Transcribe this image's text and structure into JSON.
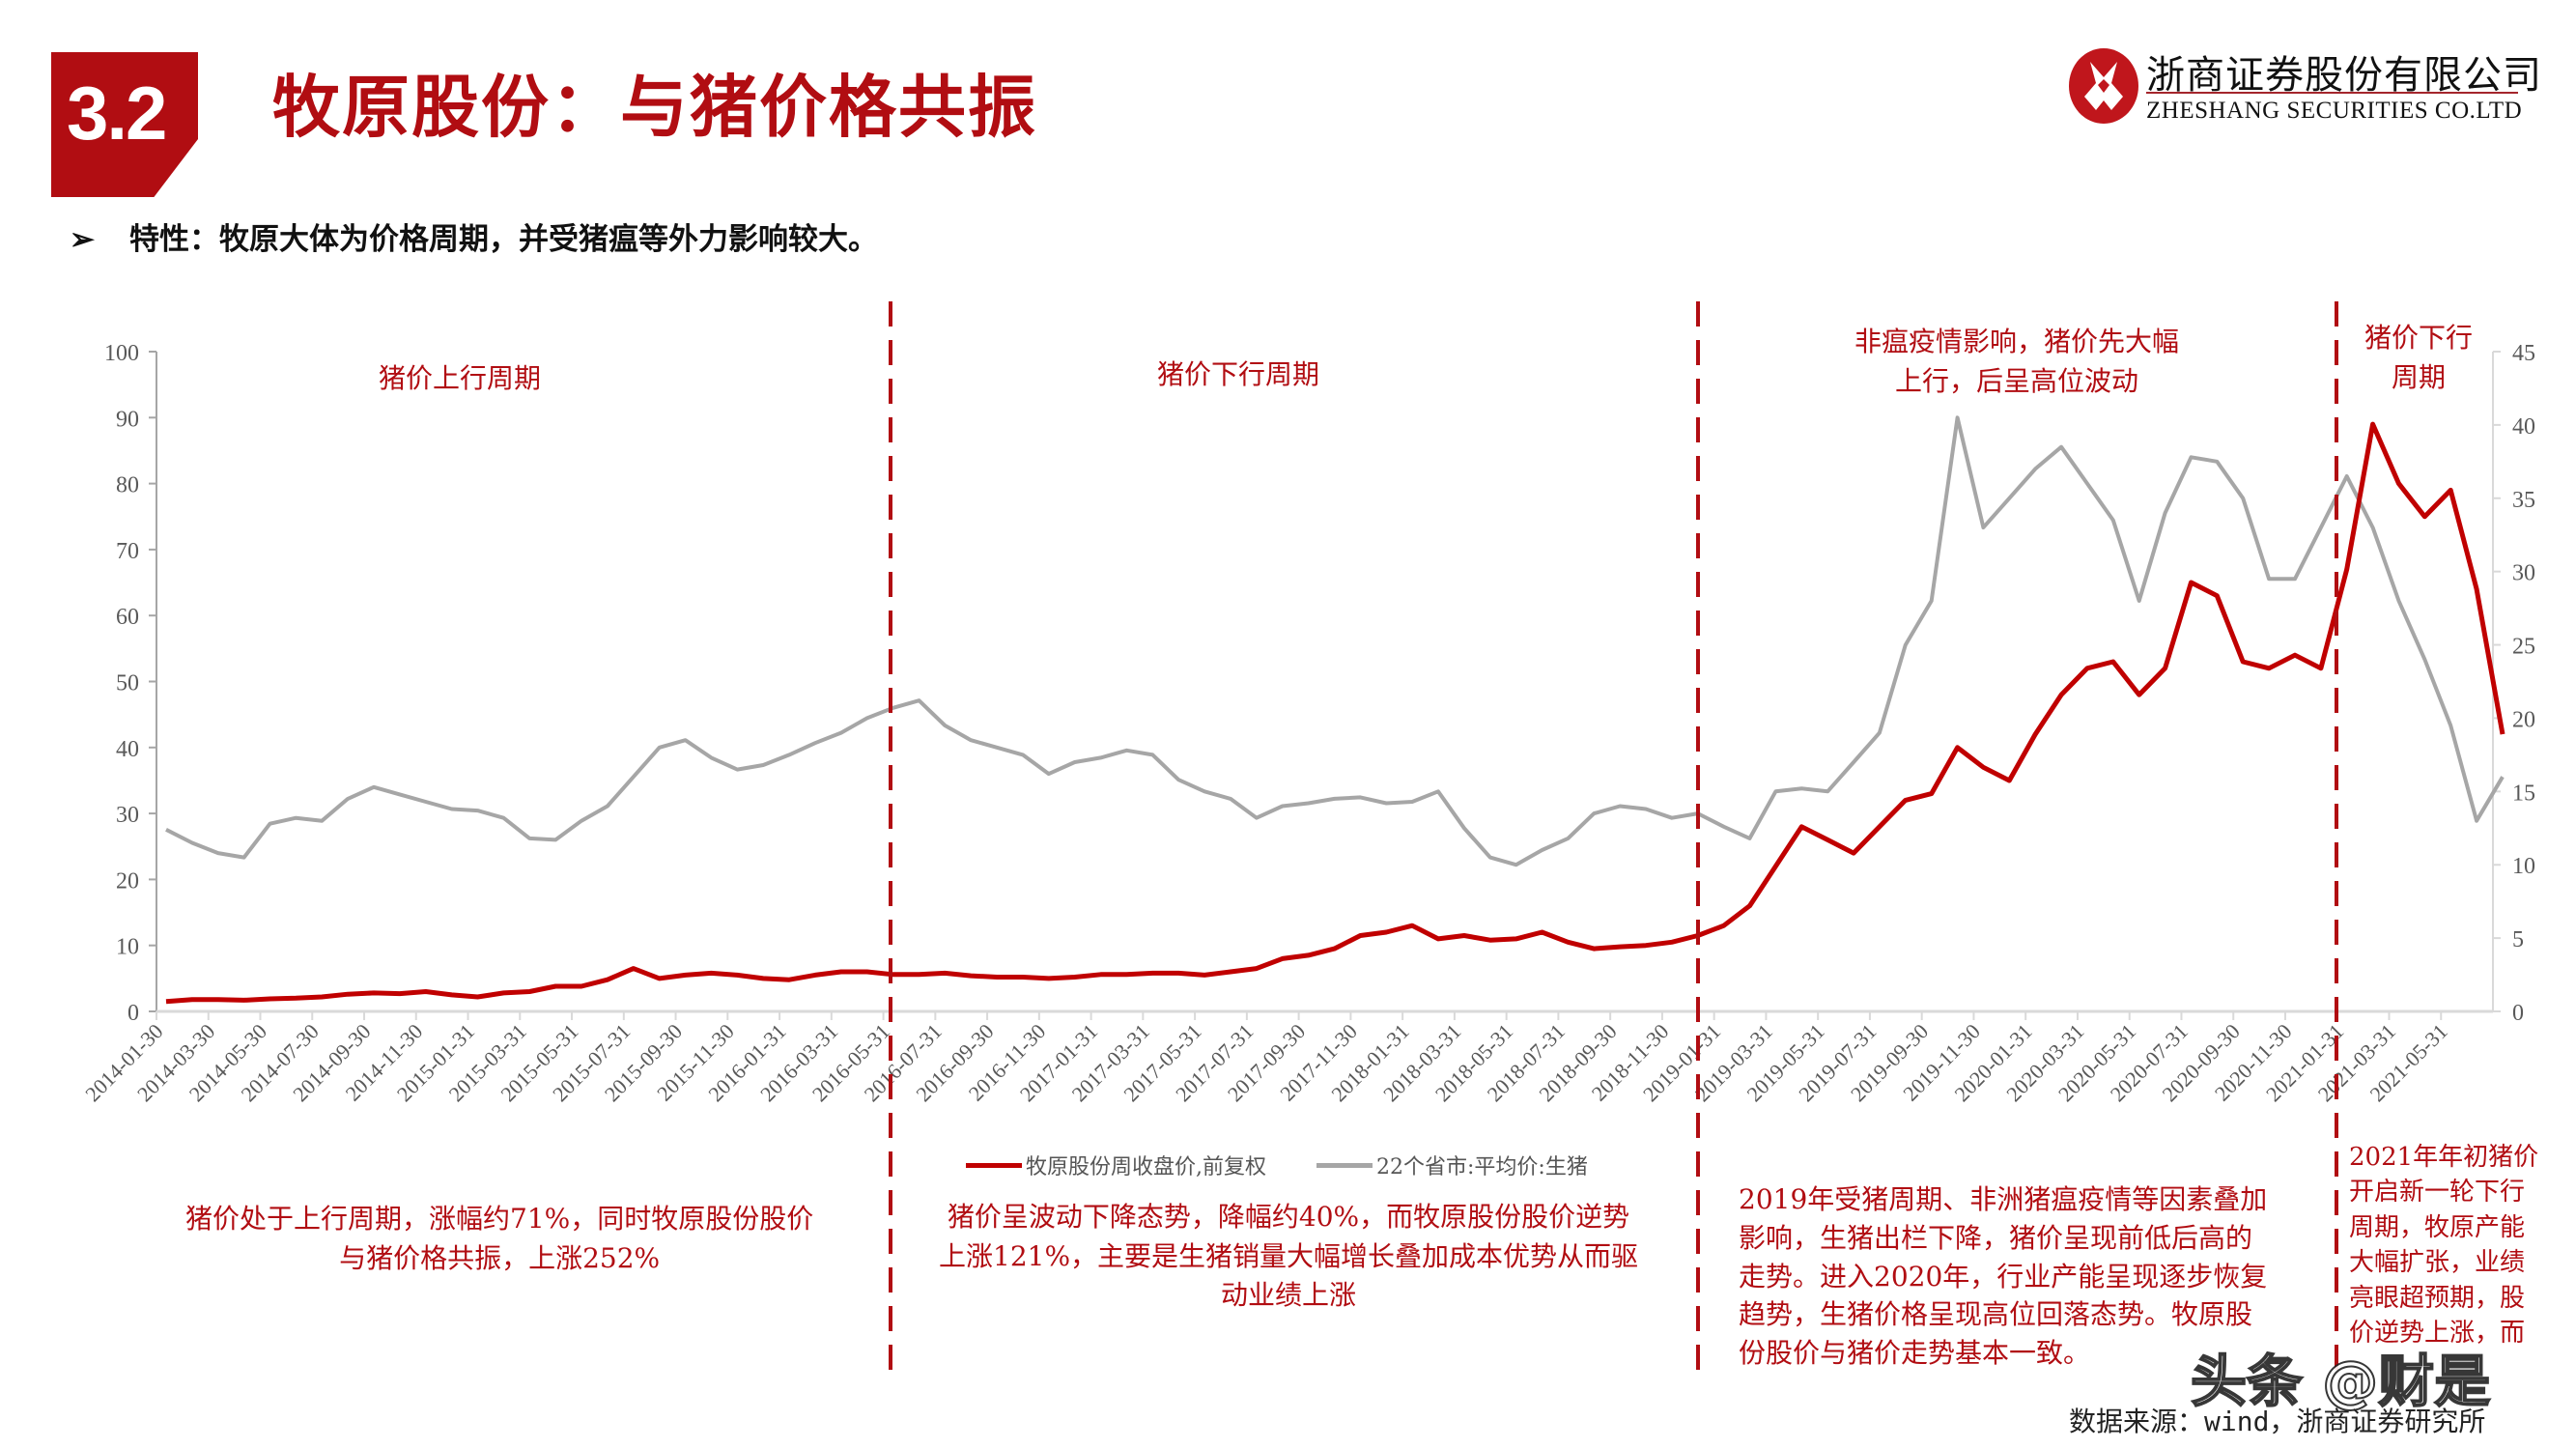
{
  "header": {
    "section_number": "3.2",
    "title": "牧原股份：与猪价格共振",
    "logo_cn": "浙商证券股份有限公司",
    "logo_en": "ZHESHANG SECURITIES CO.LTD",
    "bullet": "特性：牧原大体为价格周期，并受猪瘟等外力影响较大。"
  },
  "colors": {
    "brand_red": "#b10d12",
    "stock_line": "#c00000",
    "pig_line": "#a6a6a6",
    "divider": "#b10d12"
  },
  "annotations": {
    "top": [
      {
        "text": "猪价上行周期"
      },
      {
        "text": "猪价下行周期"
      },
      {
        "text": "非瘟疫情影响，猪价先大幅\n上行，后呈高位波动"
      },
      {
        "text": "猪价下行\n周期"
      }
    ],
    "bottom": [
      {
        "text": "猪价处于上行周期，涨幅约71%，同时牧原股份股价\n与猪价格共振，上涨252%"
      },
      {
        "text": "猪价呈波动下降态势，降幅约40%，而牧原股份股价逆势\n上涨121%，主要是生猪销量大幅增长叠加成本优势从而驱\n动业绩上涨"
      },
      {
        "text": "2019年受猪周期、非洲猪瘟疫情等因素叠加\n影响，生猪出栏下降，猪价呈现前低后高的\n走势。进入2020年，行业产能呈现逐步恢复\n趋势，生猪价格呈现高位回落态势。牧原股\n份股价与猪价走势基本一致。"
      },
      {
        "text": "2021年年初猪价\n开启新一轮下行\n周期，牧原产能\n大幅扩张，业绩\n亮眼超预期，股\n价逆势上涨，而"
      }
    ]
  },
  "source": "数据来源：wind，浙商证券研究所",
  "watermark": "头条 @财是",
  "chart_data": {
    "type": "line",
    "title": "",
    "xlabel": "",
    "ylabel_left": "",
    "ylabel_right": "",
    "ylim_left": [
      0,
      100
    ],
    "ylim_right": [
      0,
      45
    ],
    "yticks_left": [
      "0",
      "10",
      "20",
      "30",
      "40",
      "50",
      "60",
      "70",
      "80",
      "90",
      "100"
    ],
    "yticks_right": [
      "0",
      "5",
      "10",
      "15",
      "20",
      "25",
      "30",
      "35",
      "40",
      "45"
    ],
    "grid": false,
    "legend_position": "bottom",
    "x_tick_labels": [
      "2014-01-30",
      "2014-03-30",
      "2014-05-30",
      "2014-07-30",
      "2014-09-30",
      "2014-11-30",
      "2015-01-31",
      "2015-03-31",
      "2015-05-31",
      "2015-07-31",
      "2015-09-30",
      "2015-11-30",
      "2016-01-31",
      "2016-03-31",
      "2016-05-31",
      "2016-07-31",
      "2016-09-30",
      "2016-11-30",
      "2017-01-31",
      "2017-03-31",
      "2017-05-31",
      "2017-07-31",
      "2017-09-30",
      "2017-11-30",
      "2018-01-31",
      "2018-03-31",
      "2018-05-31",
      "2018-07-31",
      "2018-09-30",
      "2018-11-30",
      "2019-01-31",
      "2019-03-31",
      "2019-05-31",
      "2019-07-31",
      "2019-09-30",
      "2019-11-30",
      "2020-01-31",
      "2020-03-31",
      "2020-05-31",
      "2020-07-31",
      "2020-09-30",
      "2020-11-30",
      "2021-01-31",
      "2021-03-31",
      "2021-05-31"
    ],
    "x_start": "2014-01",
    "x_step": "monthly",
    "series": [
      {
        "name": "牧原股份周收盘价,前复权",
        "axis": "left",
        "color": "#c00000",
        "values": [
          1.5,
          1.8,
          1.8,
          1.7,
          1.9,
          2.0,
          2.2,
          2.6,
          2.8,
          2.7,
          3.0,
          2.5,
          2.2,
          2.8,
          3.0,
          3.8,
          3.8,
          4.8,
          6.5,
          5.0,
          5.5,
          5.8,
          5.5,
          5.0,
          4.8,
          5.5,
          6.0,
          6.0,
          5.6,
          5.6,
          5.8,
          5.4,
          5.2,
          5.2,
          5.0,
          5.2,
          5.6,
          5.6,
          5.8,
          5.8,
          5.5,
          6.0,
          6.5,
          8.0,
          8.5,
          9.5,
          11.5,
          12.0,
          13.0,
          11.0,
          11.5,
          10.8,
          11.0,
          12.0,
          10.5,
          9.5,
          9.8,
          10.0,
          10.5,
          11.5,
          13.0,
          16.0,
          22.0,
          28.0,
          26.0,
          24.0,
          28.0,
          32.0,
          33.0,
          40.0,
          37.0,
          35.0,
          42.0,
          48.0,
          52.0,
          53.0,
          48.0,
          52.0,
          65.0,
          63.0,
          53.0,
          52.0,
          54.0,
          52.0,
          67.0,
          89.0,
          80.0,
          75.0,
          79.0,
          64.0,
          42.0
        ]
      },
      {
        "name": "22个省市:平均价:生猪",
        "axis": "right",
        "color": "#a6a6a6",
        "values": [
          12.4,
          11.5,
          10.8,
          10.5,
          12.8,
          13.2,
          13.0,
          14.5,
          15.3,
          14.8,
          14.3,
          13.8,
          13.7,
          13.2,
          11.8,
          11.7,
          13.0,
          14.0,
          16.0,
          18.0,
          18.5,
          17.3,
          16.5,
          16.8,
          17.5,
          18.3,
          19.0,
          20.0,
          20.7,
          21.2,
          19.5,
          18.5,
          18.0,
          17.5,
          16.2,
          17.0,
          17.3,
          17.8,
          17.5,
          15.8,
          15.0,
          14.5,
          13.2,
          14.0,
          14.2,
          14.5,
          14.6,
          14.2,
          14.3,
          15.0,
          12.5,
          10.5,
          10.0,
          11.0,
          11.8,
          13.5,
          14.0,
          13.8,
          13.2,
          13.5,
          12.6,
          11.8,
          15.0,
          15.2,
          15.0,
          17.0,
          19.0,
          25.0,
          28.0,
          40.5,
          33.0,
          35.0,
          37.0,
          38.5,
          36.0,
          33.5,
          28.0,
          34.0,
          37.8,
          37.5,
          35.0,
          29.5,
          29.5,
          33.0,
          36.5,
          33.0,
          28.0,
          24.0,
          19.5,
          13.0,
          16.0
        ]
      }
    ],
    "period_dividers": [
      "2016-06",
      "2019-01",
      "2021-01"
    ]
  }
}
